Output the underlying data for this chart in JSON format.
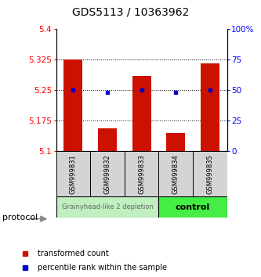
{
  "title": "GDS5113 / 10363962",
  "samples": [
    "GSM999831",
    "GSM999832",
    "GSM999833",
    "GSM999834",
    "GSM999835"
  ],
  "red_values": [
    5.325,
    5.155,
    5.285,
    5.145,
    5.315
  ],
  "blue_values_transformed": [
    5.25,
    5.245,
    5.25,
    5.245,
    5.25
  ],
  "bar_base": 5.1,
  "ylim": [
    5.1,
    5.4
  ],
  "y_ticks_left": [
    5.1,
    5.175,
    5.25,
    5.325,
    5.4
  ],
  "y_ticks_right": [
    0,
    25,
    50,
    75,
    100
  ],
  "dotted_lines": [
    5.325,
    5.25,
    5.175
  ],
  "group1_label": "Grainyhead-like 2 depletion",
  "group2_label": "control",
  "group1_color": "#c0f0c0",
  "group2_color": "#44ee44",
  "sample_box_color": "#d4d4d4",
  "bar_color": "#cc1100",
  "dot_color": "#0000cc",
  "legend_red_label": "transformed count",
  "legend_blue_label": "percentile rank within the sample",
  "protocol_label": "protocol",
  "bar_width": 0.55,
  "title_fontsize": 10,
  "tick_fontsize": 7.5,
  "sample_fontsize": 6,
  "group_fontsize1": 6,
  "group_fontsize2": 8,
  "legend_fontsize": 7
}
